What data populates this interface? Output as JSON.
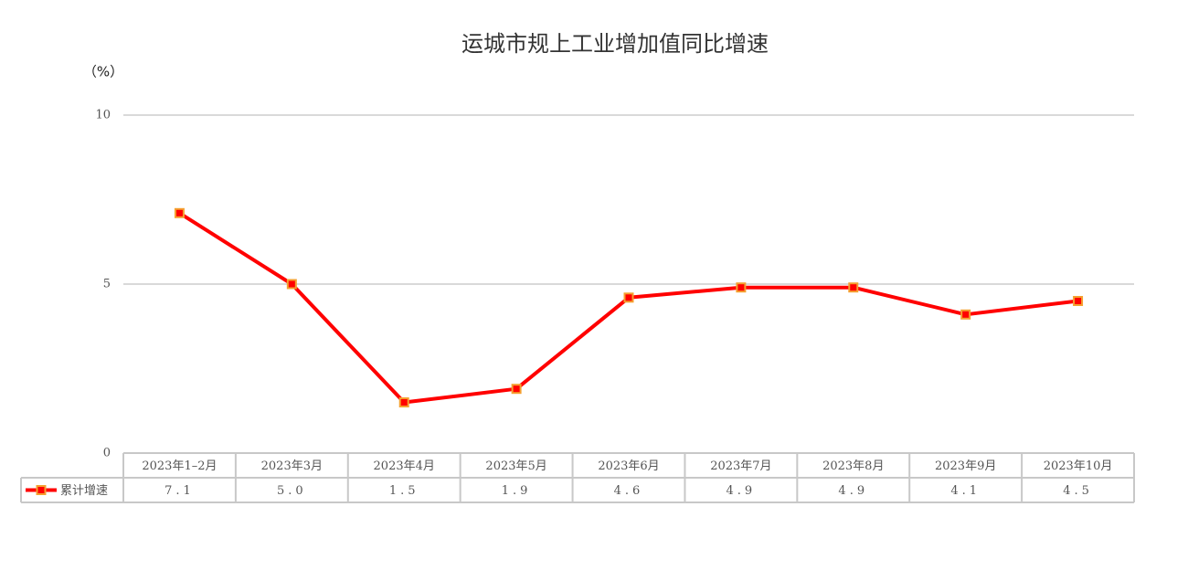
{
  "chart_data": {
    "type": "line",
    "title": "运城市规上工业增加值同比增速",
    "y_label": "（%）",
    "categories": [
      "2023年1–2月",
      "2023年3月",
      "2023年4月",
      "2023年5月",
      "2023年6月",
      "2023年7月",
      "2023年8月",
      "2023年9月",
      "2023年10月"
    ],
    "series": [
      {
        "name": "累计增速",
        "color": "#ff0000",
        "marker_color": "#f5a030",
        "values": [
          7.1,
          5.0,
          1.5,
          1.9,
          4.6,
          4.9,
          4.9,
          4.1,
          4.5
        ],
        "value_labels": [
          "7.1",
          "5.0",
          "1.5",
          "1.9",
          "4.6",
          "4.9",
          "4.9",
          "4.1",
          "4.5"
        ]
      }
    ],
    "ylim": [
      0,
      10
    ],
    "yticks": [
      0,
      5,
      10
    ],
    "grid": true
  }
}
